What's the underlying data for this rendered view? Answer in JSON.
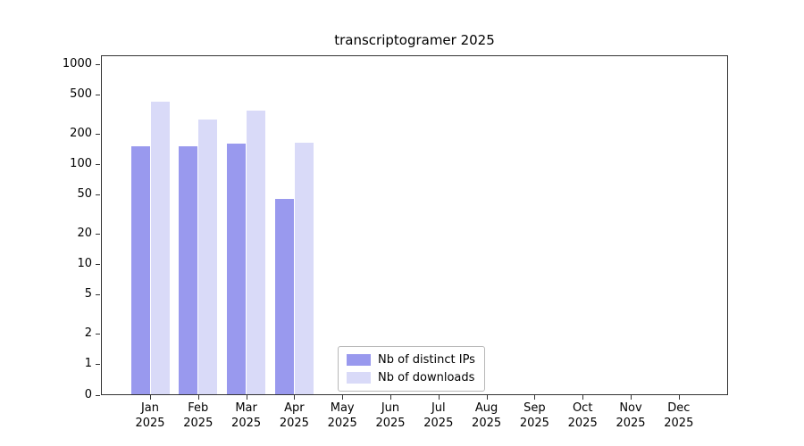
{
  "title": "transcriptogramer 2025",
  "legend": {
    "items": [
      {
        "label": "Nb of distinct IPs",
        "color": "#9999ee"
      },
      {
        "label": "Nb of downloads",
        "color": "#d9daf8"
      }
    ]
  },
  "y_axis": {
    "ticks": [
      0,
      1,
      2,
      5,
      10,
      20,
      50,
      100,
      200,
      500,
      1000
    ]
  },
  "x_axis": {
    "months": [
      "Jan",
      "Feb",
      "Mar",
      "Apr",
      "May",
      "Jun",
      "Jul",
      "Aug",
      "Sep",
      "Oct",
      "Nov",
      "Dec"
    ],
    "year": "2025"
  },
  "chart_data": {
    "type": "bar",
    "title": "transcriptogramer 2025",
    "categories": [
      "Jan 2025",
      "Feb 2025",
      "Mar 2025",
      "Apr 2025",
      "May 2025",
      "Jun 2025",
      "Jul 2025",
      "Aug 2025",
      "Sep 2025",
      "Oct 2025",
      "Nov 2025",
      "Dec 2025"
    ],
    "series": [
      {
        "name": "Nb of distinct IPs",
        "values": [
          150,
          150,
          160,
          45,
          0,
          0,
          0,
          0,
          0,
          0,
          0,
          0
        ]
      },
      {
        "name": "Nb of downloads",
        "values": [
          420,
          280,
          340,
          165,
          0,
          0,
          0,
          0,
          0,
          0,
          0,
          0
        ]
      }
    ],
    "yscale": "symlog",
    "yticks": [
      0,
      1,
      2,
      5,
      10,
      20,
      50,
      100,
      200,
      500,
      1000
    ],
    "ylim": [
      0,
      1000
    ],
    "grid": "horizontal",
    "legend_position": "lower center"
  }
}
